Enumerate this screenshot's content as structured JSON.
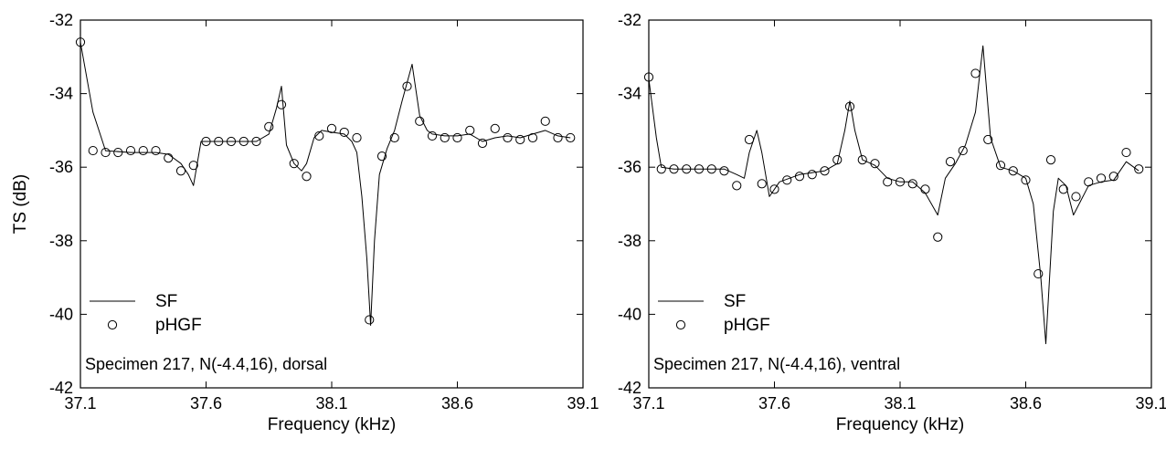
{
  "chart_data": [
    {
      "type": "line",
      "xlabel": "Frequency (kHz)",
      "ylabel": "TS (dB)",
      "xlim": [
        37.1,
        39.1
      ],
      "ylim": [
        -42,
        -32
      ],
      "xticks": [
        "37.1",
        "37.6",
        "38.1",
        "38.6",
        "39.1"
      ],
      "yticks": [
        "-32",
        "-34",
        "-36",
        "-38",
        "-40",
        "-42"
      ],
      "annotation": "Specimen 217, N(-4.4,16), dorsal",
      "legend": {
        "position": "lower-left",
        "entries": [
          "SF",
          "pHGF"
        ]
      },
      "series": [
        {
          "name": "SF",
          "style": "line",
          "x": [
            37.1,
            37.15,
            37.2,
            37.3,
            37.35,
            37.4,
            37.45,
            37.5,
            37.53,
            37.55,
            37.58,
            37.62,
            37.7,
            37.75,
            37.8,
            37.85,
            37.88,
            37.9,
            37.92,
            37.95,
            37.98,
            38.0,
            38.03,
            38.06,
            38.1,
            38.15,
            38.18,
            38.2,
            38.22,
            38.24,
            38.255,
            38.27,
            38.29,
            38.32,
            38.35,
            38.38,
            38.42,
            38.45,
            38.48,
            38.5,
            38.55,
            38.6,
            38.65,
            38.7,
            38.75,
            38.8,
            38.85,
            38.9,
            38.95,
            39.0,
            39.05
          ],
          "y": [
            -32.6,
            -34.5,
            -35.55,
            -35.6,
            -35.6,
            -35.6,
            -35.65,
            -35.9,
            -36.2,
            -36.5,
            -35.3,
            -35.3,
            -35.3,
            -35.3,
            -35.3,
            -35.1,
            -34.4,
            -33.8,
            -35.4,
            -35.9,
            -36.1,
            -35.9,
            -35.2,
            -35.0,
            -35.05,
            -35.1,
            -35.3,
            -35.6,
            -36.8,
            -38.5,
            -40.3,
            -38.0,
            -36.2,
            -35.5,
            -35.0,
            -34.2,
            -33.2,
            -34.6,
            -35.0,
            -35.1,
            -35.15,
            -35.15,
            -35.1,
            -35.3,
            -35.2,
            -35.15,
            -35.2,
            -35.1,
            -35.0,
            -35.15,
            -35.2
          ]
        },
        {
          "name": "pHGF",
          "style": "circle",
          "x": [
            37.1,
            37.15,
            37.2,
            37.25,
            37.3,
            37.35,
            37.4,
            37.45,
            37.5,
            37.55,
            37.6,
            37.65,
            37.7,
            37.75,
            37.8,
            37.85,
            37.9,
            37.95,
            38.0,
            38.05,
            38.1,
            38.15,
            38.2,
            38.25,
            38.3,
            38.35,
            38.4,
            38.45,
            38.5,
            38.55,
            38.6,
            38.65,
            38.7,
            38.75,
            38.8,
            38.85,
            38.9,
            38.95,
            39.0,
            39.05
          ],
          "y": [
            -32.6,
            -35.55,
            -35.6,
            -35.6,
            -35.55,
            -35.55,
            -35.55,
            -35.75,
            -36.1,
            -35.95,
            -35.3,
            -35.3,
            -35.3,
            -35.3,
            -35.3,
            -34.9,
            -34.3,
            -35.9,
            -36.25,
            -35.15,
            -34.95,
            -35.05,
            -35.2,
            -40.15,
            -35.7,
            -35.2,
            -33.8,
            -34.75,
            -35.15,
            -35.2,
            -35.2,
            -35.0,
            -35.35,
            -34.95,
            -35.2,
            -35.25,
            -35.2,
            -34.75,
            -35.2,
            -35.2
          ]
        }
      ]
    },
    {
      "type": "line",
      "xlabel": "Frequency (kHz)",
      "ylabel": "",
      "xlim": [
        37.1,
        39.1
      ],
      "ylim": [
        -42,
        -32
      ],
      "xticks": [
        "37.1",
        "37.6",
        "38.1",
        "38.6",
        "39.1"
      ],
      "yticks": [
        "-32",
        "-34",
        "-36",
        "-38",
        "-40",
        "-42"
      ],
      "annotation": "Specimen 217, N(-4.4,16), ventral",
      "legend": {
        "position": "lower-left",
        "entries": [
          "SF",
          "pHGF"
        ]
      },
      "series": [
        {
          "name": "SF",
          "style": "line",
          "x": [
            37.1,
            37.13,
            37.15,
            37.2,
            37.3,
            37.4,
            37.45,
            37.48,
            37.5,
            37.53,
            37.55,
            37.58,
            37.62,
            37.7,
            37.75,
            37.8,
            37.85,
            37.88,
            37.9,
            37.92,
            37.95,
            38.0,
            38.05,
            38.1,
            38.15,
            38.2,
            38.25,
            38.28,
            38.32,
            38.36,
            38.4,
            38.43,
            38.46,
            38.5,
            38.55,
            38.6,
            38.63,
            38.66,
            38.68,
            38.71,
            38.73,
            38.76,
            38.79,
            38.85,
            38.9,
            38.95,
            39.0,
            39.05
          ],
          "y": [
            -33.6,
            -35.2,
            -36.0,
            -36.05,
            -36.05,
            -36.05,
            -36.2,
            -36.3,
            -35.6,
            -35.0,
            -35.6,
            -36.8,
            -36.4,
            -36.2,
            -36.15,
            -36.1,
            -35.9,
            -35.0,
            -34.2,
            -35.0,
            -35.8,
            -35.95,
            -36.3,
            -36.4,
            -36.4,
            -36.7,
            -37.3,
            -36.3,
            -35.9,
            -35.4,
            -34.5,
            -32.7,
            -35.2,
            -36.0,
            -36.1,
            -36.3,
            -37.0,
            -39.0,
            -40.8,
            -37.2,
            -36.3,
            -36.5,
            -37.3,
            -36.5,
            -36.4,
            -36.35,
            -35.85,
            -36.1
          ]
        },
        {
          "name": "pHGF",
          "style": "circle",
          "x": [
            37.1,
            37.15,
            37.2,
            37.25,
            37.3,
            37.35,
            37.4,
            37.45,
            37.5,
            37.55,
            37.6,
            37.65,
            37.7,
            37.75,
            37.8,
            37.85,
            37.9,
            37.95,
            38.0,
            38.05,
            38.1,
            38.15,
            38.2,
            38.25,
            38.3,
            38.35,
            38.4,
            38.45,
            38.5,
            38.55,
            38.6,
            38.65,
            38.7,
            38.75,
            38.8,
            38.85,
            38.9,
            38.95,
            39.0,
            39.05
          ],
          "y": [
            -33.55,
            -36.05,
            -36.05,
            -36.05,
            -36.05,
            -36.05,
            -36.1,
            -36.5,
            -35.25,
            -36.45,
            -36.6,
            -36.35,
            -36.25,
            -36.2,
            -36.1,
            -35.8,
            -34.35,
            -35.8,
            -35.9,
            -36.4,
            -36.4,
            -36.45,
            -36.6,
            -37.9,
            -35.85,
            -35.55,
            -33.45,
            -35.25,
            -35.95,
            -36.1,
            -36.35,
            -38.9,
            -35.8,
            -36.6,
            -36.8,
            -36.4,
            -36.3,
            -36.25,
            -35.6,
            -36.05
          ]
        }
      ]
    }
  ]
}
